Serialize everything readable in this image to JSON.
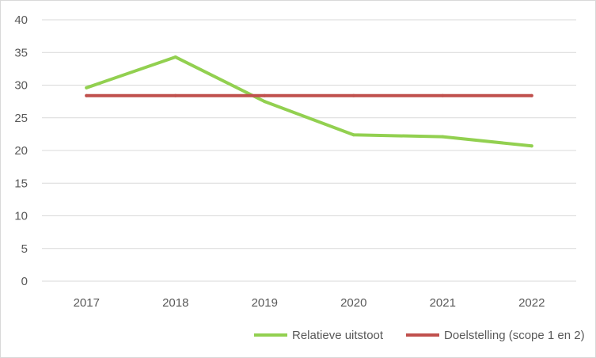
{
  "chart_data": {
    "type": "line",
    "title": "",
    "xlabel": "",
    "ylabel": "",
    "categories": [
      "2017",
      "2018",
      "2019",
      "2020",
      "2021",
      "2022"
    ],
    "ylim": [
      0,
      40
    ],
    "yticks": [
      0,
      5,
      10,
      15,
      20,
      25,
      30,
      35,
      40
    ],
    "ytick_labels": [
      "0",
      "5",
      "10",
      "15",
      "20",
      "25",
      "30",
      "35",
      "40"
    ],
    "grid": true,
    "legend_position": "bottom",
    "series": [
      {
        "name": "Relatieve uitstoot",
        "color": "#92d050",
        "values": [
          29.6,
          34.3,
          27.5,
          22.4,
          22.1,
          20.7
        ]
      },
      {
        "name": "Doelstelling (scope 1 en 2)",
        "color": "#c0504d",
        "values": [
          28.4,
          28.4,
          28.4,
          28.4,
          28.4,
          28.4
        ]
      }
    ]
  }
}
